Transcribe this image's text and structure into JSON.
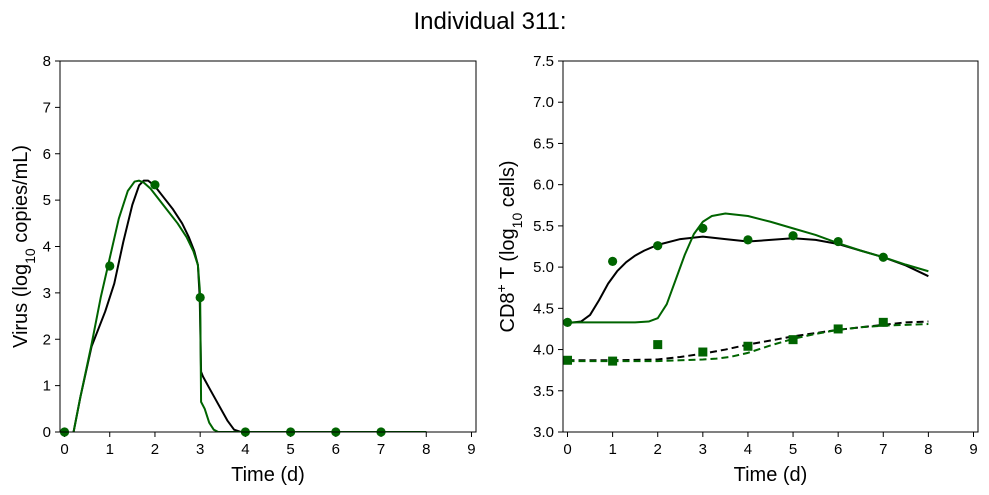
{
  "suptitle": "Individual 311:",
  "colors": {
    "model_black": "#000000",
    "model_green": "#006400",
    "data_green": "#006400"
  },
  "chart_data": [
    {
      "type": "line",
      "panel": "left",
      "xlabel": "Time (d)",
      "ylabel": {
        "main": "Virus (log",
        "sub": "10",
        "rest": " copies/mL)"
      },
      "xlim": [
        -0.1,
        9.1
      ],
      "ylim": [
        0,
        8
      ],
      "xticks": [
        0,
        1,
        2,
        3,
        4,
        5,
        6,
        7,
        8,
        9
      ],
      "yticks": [
        0,
        1,
        2,
        3,
        4,
        5,
        6,
        7,
        8
      ],
      "grid": false,
      "series": [
        {
          "style": "data-points",
          "marker": "circle",
          "color": "#006400",
          "x": [
            0,
            1,
            2,
            3,
            4,
            5,
            6,
            7
          ],
          "y": [
            0.0,
            3.58,
            5.33,
            2.9,
            0.0,
            0.0,
            0.0,
            0.0
          ]
        },
        {
          "style": "solid",
          "color": "#000000",
          "x": [
            0.2,
            0.35,
            0.6,
            0.9,
            1.1,
            1.3,
            1.5,
            1.65,
            1.75,
            1.85,
            2.0,
            2.2,
            2.4,
            2.6,
            2.75,
            2.87,
            2.95,
            2.99,
            3.02,
            3.06,
            3.2,
            3.4,
            3.6,
            3.75,
            3.9,
            4.2,
            5.0,
            6.0,
            7.0,
            8.0
          ],
          "y": [
            0.0,
            0.75,
            1.85,
            2.6,
            3.2,
            4.1,
            4.9,
            5.32,
            5.42,
            5.42,
            5.3,
            5.05,
            4.8,
            4.5,
            4.2,
            3.9,
            3.6,
            2.9,
            1.3,
            1.2,
            0.95,
            0.6,
            0.25,
            0.05,
            0.0,
            0.0,
            0.0,
            0.0,
            0.0,
            0.0
          ]
        },
        {
          "style": "solid",
          "color": "#006400",
          "x": [
            0.2,
            0.35,
            0.6,
            0.8,
            1.0,
            1.2,
            1.4,
            1.55,
            1.65,
            1.75,
            1.9,
            2.1,
            2.3,
            2.5,
            2.7,
            2.85,
            2.95,
            2.99,
            3.0,
            3.02,
            3.1,
            3.2,
            3.3,
            3.4,
            3.6,
            4.0,
            5.0,
            6.0,
            7.0,
            8.0
          ],
          "y": [
            0.0,
            0.75,
            1.9,
            2.9,
            3.75,
            4.6,
            5.2,
            5.4,
            5.42,
            5.38,
            5.25,
            5.0,
            4.75,
            4.5,
            4.2,
            3.9,
            3.6,
            3.1,
            2.9,
            0.65,
            0.5,
            0.2,
            0.05,
            0.0,
            0.0,
            0.0,
            0.0,
            0.0,
            0.0,
            0.0
          ]
        }
      ]
    },
    {
      "type": "line",
      "panel": "right",
      "xlabel": "Time (d)",
      "ylabel": {
        "main": "CD8",
        "sup": "+",
        "mid": " T (log",
        "sub": "10",
        "rest": " cells)"
      },
      "xlim": [
        -0.1,
        9.1
      ],
      "ylim": [
        3.0,
        7.5
      ],
      "xticks": [
        0,
        1,
        2,
        3,
        4,
        5,
        6,
        7,
        8,
        9
      ],
      "yticks": [
        3.0,
        3.5,
        4.0,
        4.5,
        5.0,
        5.5,
        6.0,
        6.5,
        7.0,
        7.5
      ],
      "ytick_labels": [
        "3.0",
        "3.5",
        "4.0",
        "4.5",
        "5.0",
        "5.5",
        "6.0",
        "6.5",
        "7.0",
        "7.5"
      ],
      "grid": false,
      "series": [
        {
          "style": "data-points",
          "marker": "circle",
          "color": "#006400",
          "x": [
            0,
            1,
            2,
            3,
            4,
            5,
            6,
            7
          ],
          "y": [
            4.33,
            5.07,
            5.26,
            5.47,
            5.33,
            5.38,
            5.31,
            5.12
          ]
        },
        {
          "style": "data-points",
          "marker": "square",
          "color": "#006400",
          "x": [
            0,
            1,
            2,
            3,
            4,
            5,
            6,
            7
          ],
          "y": [
            3.87,
            3.86,
            4.06,
            3.97,
            4.04,
            4.12,
            4.25,
            4.33
          ]
        },
        {
          "style": "solid",
          "color": "#000000",
          "x": [
            0,
            0.3,
            0.5,
            0.7,
            0.9,
            1.1,
            1.3,
            1.5,
            1.7,
            2.0,
            2.5,
            3.0,
            3.5,
            4.0,
            4.5,
            5.0,
            5.5,
            6.0,
            6.5,
            7.0,
            7.5,
            8.0
          ],
          "y": [
            4.32,
            4.34,
            4.42,
            4.6,
            4.8,
            4.95,
            5.06,
            5.14,
            5.2,
            5.27,
            5.34,
            5.37,
            5.34,
            5.31,
            5.33,
            5.35,
            5.33,
            5.28,
            5.2,
            5.12,
            5.02,
            4.89
          ]
        },
        {
          "style": "solid",
          "color": "#006400",
          "x": [
            0,
            0.5,
            1.0,
            1.5,
            1.8,
            2.0,
            2.2,
            2.4,
            2.6,
            2.8,
            3.0,
            3.2,
            3.5,
            4.0,
            4.5,
            5.0,
            5.5,
            6.0,
            6.5,
            7.0,
            7.5,
            8.0
          ],
          "y": [
            4.33,
            4.33,
            4.33,
            4.33,
            4.34,
            4.38,
            4.55,
            4.85,
            5.15,
            5.4,
            5.55,
            5.62,
            5.65,
            5.62,
            5.55,
            5.47,
            5.39,
            5.29,
            5.2,
            5.12,
            5.03,
            4.95
          ]
        },
        {
          "style": "dashed",
          "color": "#000000",
          "x": [
            0,
            1.0,
            2.0,
            2.5,
            3.0,
            3.5,
            4.0,
            4.5,
            5.0,
            5.5,
            6.0,
            6.5,
            7.0,
            7.5,
            8.0
          ],
          "y": [
            3.87,
            3.87,
            3.88,
            3.91,
            3.95,
            4.0,
            4.06,
            4.11,
            4.16,
            4.2,
            4.24,
            4.27,
            4.3,
            4.33,
            4.34
          ]
        },
        {
          "style": "dashed",
          "color": "#006400",
          "x": [
            0,
            1.0,
            2.0,
            2.5,
            3.0,
            3.3,
            3.6,
            4.0,
            4.5,
            5.0,
            5.5,
            6.0,
            6.5,
            7.0,
            7.5,
            8.0
          ],
          "y": [
            3.86,
            3.86,
            3.86,
            3.87,
            3.88,
            3.89,
            3.91,
            3.96,
            4.05,
            4.13,
            4.19,
            4.24,
            4.27,
            4.29,
            4.3,
            4.31
          ]
        }
      ]
    }
  ]
}
